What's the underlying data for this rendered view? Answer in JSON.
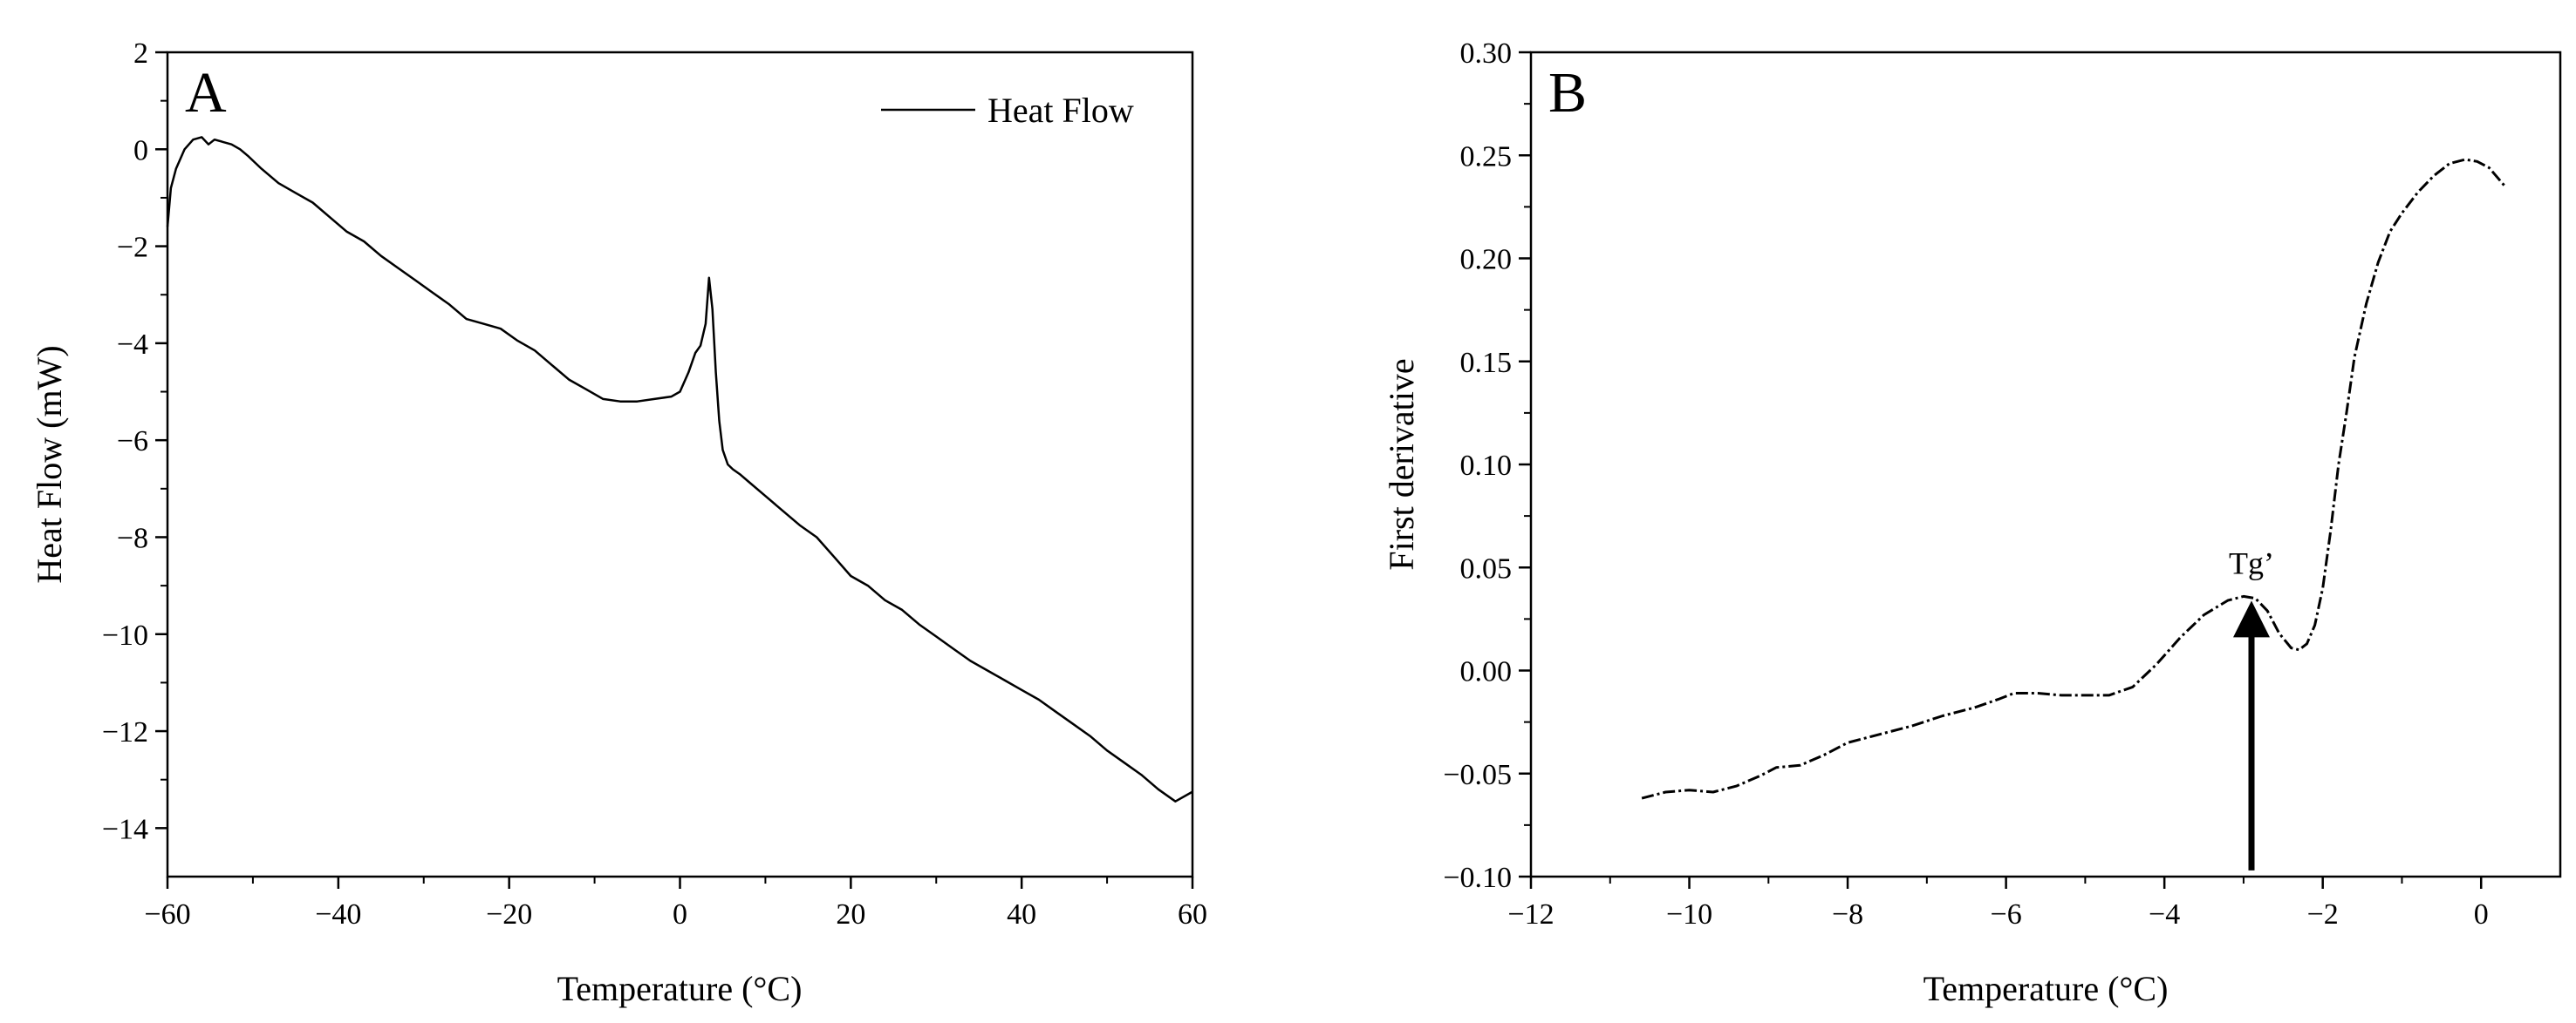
{
  "chart_data": [
    {
      "id": "A",
      "type": "line",
      "panel_label": "A",
      "xlabel": "Temperature (°C)",
      "ylabel": "Heat Flow (mW)",
      "xlim": [
        -60,
        60
      ],
      "ylim": [
        -15,
        2
      ],
      "xticks": [
        -60,
        -40,
        -20,
        0,
        20,
        40,
        60
      ],
      "yticks": [
        2,
        0,
        -2,
        -4,
        -6,
        -8,
        -10,
        -12,
        -14
      ],
      "xtick_labels": [
        "−60",
        "−40",
        "−20",
        "0",
        "20",
        "40",
        "60"
      ],
      "ytick_labels": [
        "2",
        "0",
        "−2",
        "−4",
        "−6",
        "−8",
        "−10",
        "−12",
        "−14"
      ],
      "legend": {
        "position": "top-right",
        "entries": [
          "Heat Flow"
        ]
      },
      "series": [
        {
          "name": "Heat Flow",
          "style": "solid",
          "x": [
            -60,
            -59.6,
            -59,
            -58,
            -57,
            -56,
            -55.2,
            -54.5,
            -53.5,
            -52.5,
            -51.5,
            -50.5,
            -49,
            -47,
            -45,
            -43,
            -41,
            -39,
            -37,
            -35,
            -33,
            -31,
            -29,
            -27,
            -25,
            -23,
            -21,
            -19,
            -17,
            -15,
            -13,
            -11,
            -9,
            -7,
            -5,
            -3,
            -1,
            0,
            1,
            1.8,
            2.4,
            3.0,
            3.4,
            3.8,
            4.2,
            4.6,
            5.0,
            5.6,
            6.2,
            7,
            8,
            10,
            12,
            14,
            16,
            18,
            20,
            22,
            24,
            26,
            28,
            30,
            32,
            34,
            36,
            38,
            40,
            42,
            44,
            46,
            48,
            50,
            52,
            54,
            56,
            58,
            60
          ],
          "y": [
            -1.6,
            -0.8,
            -0.4,
            0.0,
            0.2,
            0.25,
            0.1,
            0.2,
            0.15,
            0.1,
            0.0,
            -0.15,
            -0.4,
            -0.7,
            -0.9,
            -1.1,
            -1.4,
            -1.7,
            -1.9,
            -2.2,
            -2.45,
            -2.7,
            -2.95,
            -3.2,
            -3.5,
            -3.6,
            -3.7,
            -3.95,
            -4.15,
            -4.45,
            -4.75,
            -4.95,
            -5.15,
            -5.2,
            -5.2,
            -5.15,
            -5.1,
            -5.0,
            -4.6,
            -4.2,
            -4.05,
            -3.6,
            -2.65,
            -3.3,
            -4.6,
            -5.6,
            -6.2,
            -6.5,
            -6.6,
            -6.7,
            -6.85,
            -7.15,
            -7.45,
            -7.75,
            -8.0,
            -8.4,
            -8.8,
            -9.0,
            -9.3,
            -9.5,
            -9.8,
            -10.05,
            -10.3,
            -10.55,
            -10.75,
            -10.95,
            -11.15,
            -11.35,
            -11.6,
            -11.85,
            -12.1,
            -12.4,
            -12.65,
            -12.9,
            -13.2,
            -13.45,
            -13.25
          ]
        }
      ]
    },
    {
      "id": "B",
      "type": "line",
      "panel_label": "B",
      "xlabel": "Temperature (°C)",
      "ylabel": "First derivative",
      "xlim": [
        -12,
        1
      ],
      "ylim": [
        -0.1,
        0.3
      ],
      "xticks": [
        -12,
        -10,
        -8,
        -6,
        -4,
        -2,
        0
      ],
      "yticks": [
        0.3,
        0.25,
        0.2,
        0.15,
        0.1,
        0.05,
        0.0,
        -0.05,
        -0.1
      ],
      "xtick_labels": [
        "−12",
        "−10",
        "−8",
        "−6",
        "−4",
        "−2",
        "0"
      ],
      "ytick_labels": [
        "0.30",
        "0.25",
        "0.20",
        "0.15",
        "0.10",
        "0.05",
        "0.00",
        "−0.05",
        "−0.10"
      ],
      "annotation": {
        "text": "Tg’",
        "x": -2.9,
        "y": 0.036,
        "arrow_from_y": -0.097
      },
      "series": [
        {
          "name": "First derivative",
          "style": "dash-dot",
          "x": [
            -10.6,
            -10.3,
            -10.0,
            -9.7,
            -9.4,
            -9.1,
            -8.9,
            -8.6,
            -8.3,
            -8.0,
            -7.6,
            -7.2,
            -6.8,
            -6.4,
            -6.1,
            -5.9,
            -5.6,
            -5.3,
            -5.0,
            -4.7,
            -4.4,
            -4.1,
            -3.8,
            -3.5,
            -3.2,
            -3.0,
            -2.85,
            -2.7,
            -2.55,
            -2.4,
            -2.3,
            -2.2,
            -2.1,
            -2.0,
            -1.9,
            -1.8,
            -1.7,
            -1.6,
            -1.45,
            -1.3,
            -1.15,
            -1.0,
            -0.8,
            -0.6,
            -0.4,
            -0.2,
            -0.05,
            0.1,
            0.3
          ],
          "y": [
            -0.062,
            -0.059,
            -0.058,
            -0.059,
            -0.056,
            -0.051,
            -0.047,
            -0.046,
            -0.041,
            -0.035,
            -0.031,
            -0.027,
            -0.022,
            -0.018,
            -0.014,
            -0.011,
            -0.011,
            -0.012,
            -0.012,
            -0.012,
            -0.008,
            0.003,
            0.016,
            0.027,
            0.034,
            0.036,
            0.035,
            0.029,
            0.018,
            0.011,
            0.01,
            0.013,
            0.022,
            0.04,
            0.068,
            0.1,
            0.125,
            0.152,
            0.178,
            0.198,
            0.213,
            0.222,
            0.232,
            0.24,
            0.246,
            0.248,
            0.247,
            0.244,
            0.235
          ]
        }
      ]
    }
  ]
}
